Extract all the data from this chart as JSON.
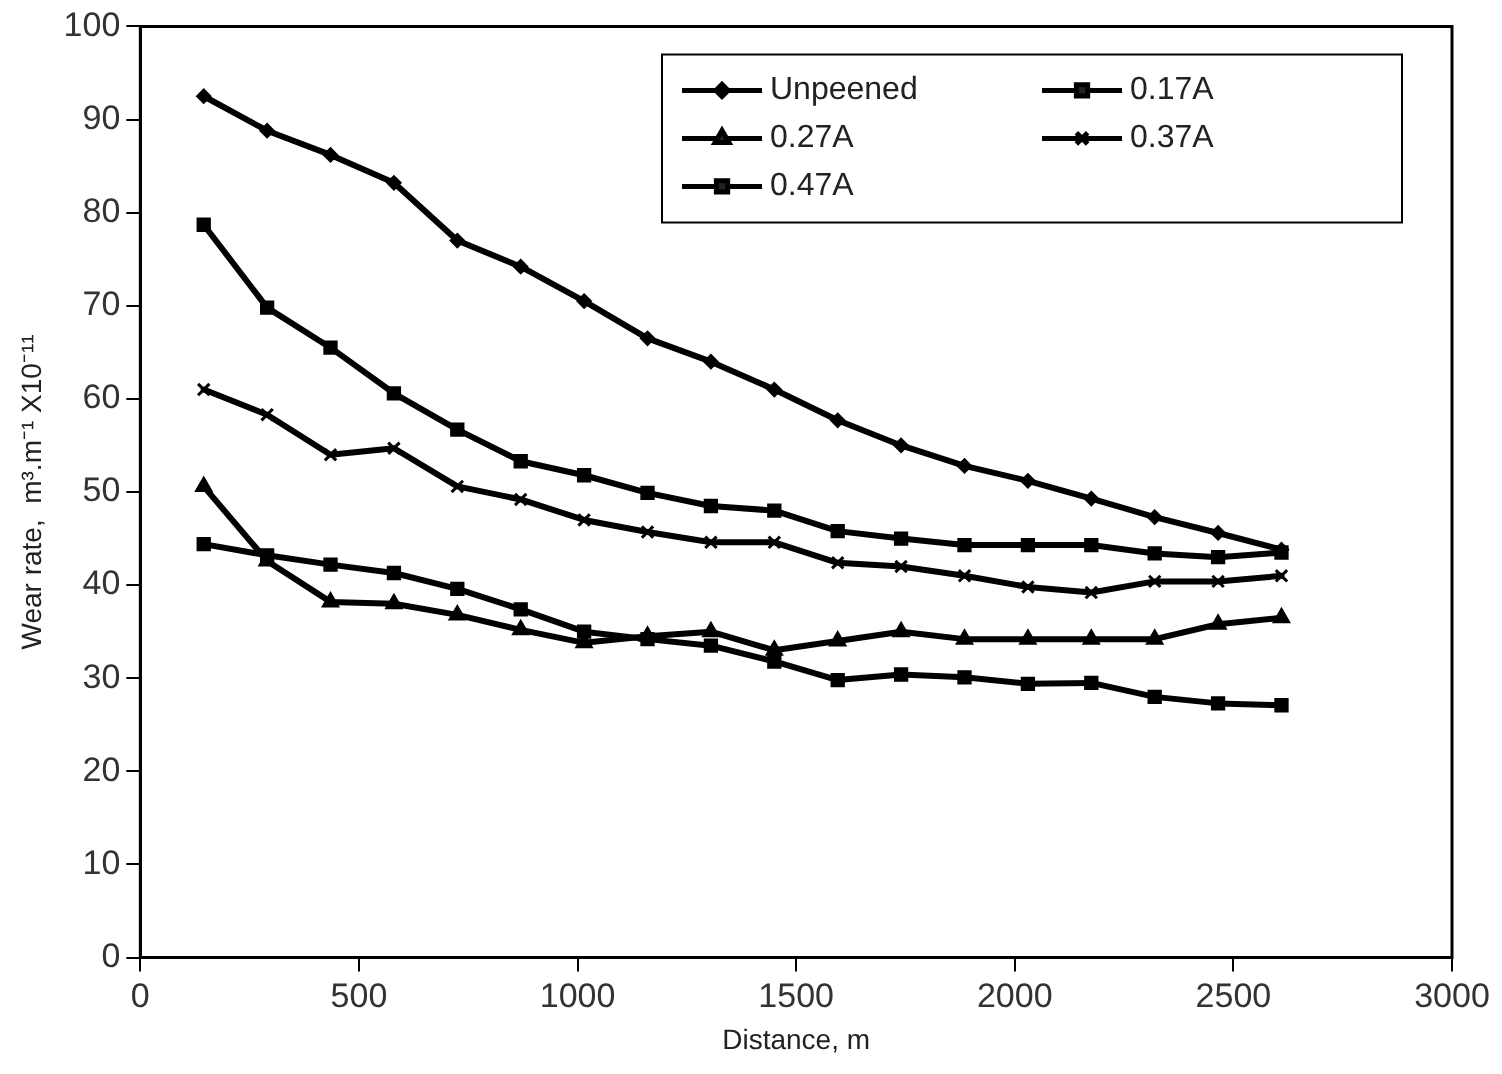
{
  "chart_data": {
    "type": "line",
    "xlabel": "Distance, m",
    "ylabel": "Wear rate,  m³.m⁻¹ X10⁻¹¹",
    "x": [
      145,
      290,
      435,
      580,
      725,
      870,
      1015,
      1160,
      1305,
      1450,
      1595,
      1740,
      1885,
      2030,
      2175,
      2320,
      2465,
      2610
    ],
    "series": [
      {
        "name": "Unpeened",
        "color": "#000000",
        "marker": "diamond",
        "values": [
          92.5,
          88.8,
          86.2,
          83.2,
          77,
          74.2,
          70.5,
          66.5,
          64,
          61,
          57.7,
          55,
          52.8,
          51.2,
          49.3,
          47.3,
          45.6,
          43.8
        ]
      },
      {
        "name": "0.17A",
        "color": "#000000",
        "marker": "square",
        "values": [
          44.4,
          43.2,
          42.2,
          41.3,
          39.6,
          37.4,
          35,
          34.2,
          33.5,
          31.8,
          29.8,
          30.4,
          30.1,
          29.4,
          29.5,
          28,
          27.3,
          27.1
        ]
      },
      {
        "name": "0.27A",
        "color": "#000000",
        "marker": "triangle",
        "values": [
          50.6,
          42.6,
          38.2,
          38,
          36.8,
          35.2,
          33.8,
          34.5,
          35,
          33,
          34,
          35,
          34.2,
          34.2,
          34.2,
          34.2,
          35.8,
          36.5
        ]
      },
      {
        "name": "0.37A",
        "color": "#000000",
        "marker": "cross",
        "values": [
          61,
          58.3,
          54,
          54.7,
          50.6,
          49.2,
          47,
          45.7,
          44.6,
          44.6,
          42.4,
          42,
          41,
          39.8,
          39.2,
          40.4,
          40.4,
          41
        ]
      },
      {
        "name": "0.47A",
        "color": "#000000",
        "marker": "square",
        "values": [
          78.7,
          69.8,
          65.5,
          60.6,
          56.7,
          53.3,
          51.8,
          49.9,
          48.5,
          48,
          45.8,
          45,
          44.3,
          44.3,
          44.3,
          43.4,
          43,
          43.5
        ]
      }
    ],
    "xlim": [
      0,
      3000
    ],
    "xticks": [
      0,
      500,
      1000,
      1500,
      2000,
      2500,
      3000
    ],
    "ylim": [
      0,
      100
    ],
    "yticks": [
      0,
      10,
      20,
      30,
      40,
      50,
      60,
      70,
      80,
      90,
      100
    ],
    "grid": false,
    "legend": "top right",
    "line_style": "solid"
  }
}
